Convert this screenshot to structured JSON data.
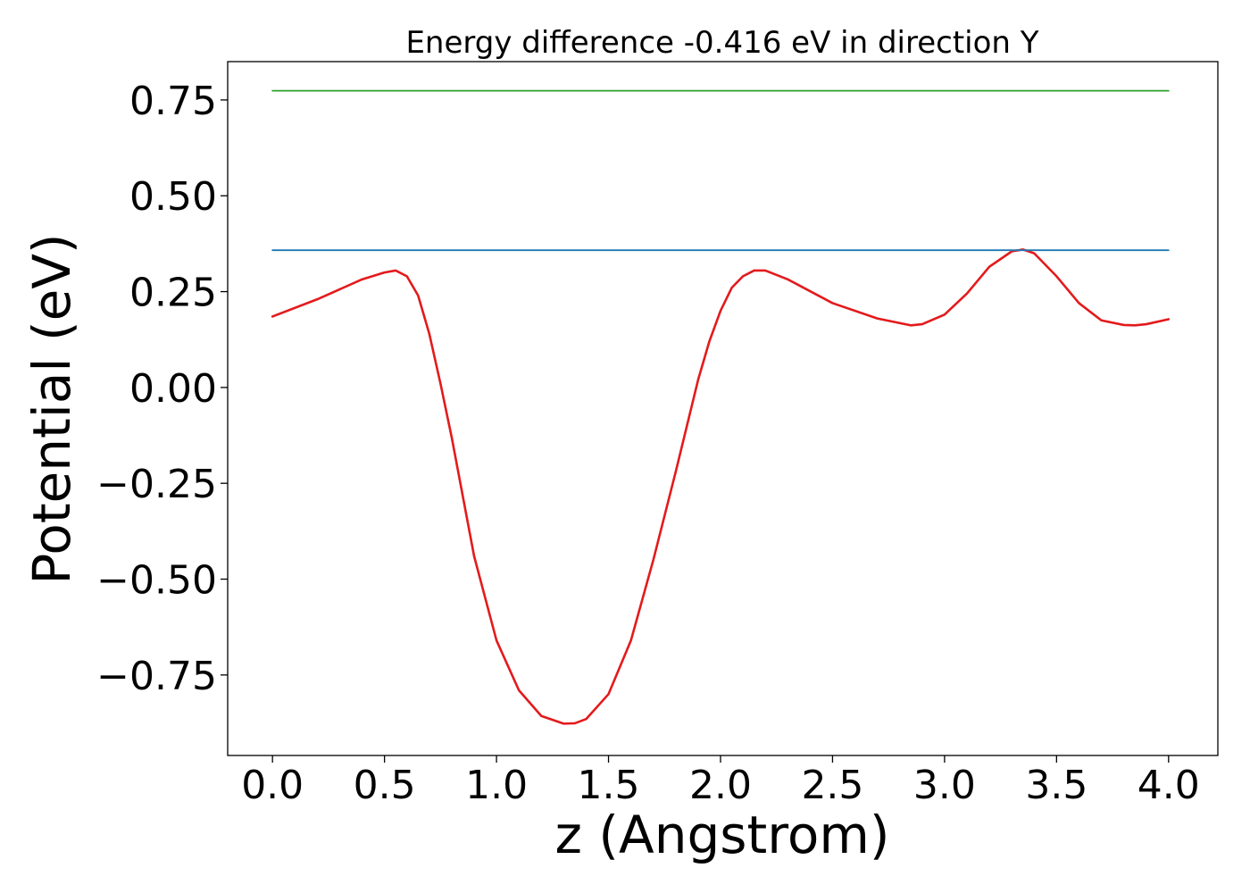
{
  "chart_data": {
    "type": "line",
    "title": "Energy difference -0.416 eV in direction Y",
    "xlabel": "z (Angstrom)",
    "ylabel": "Potential (eV)",
    "xlim": [
      -0.2,
      4.22
    ],
    "ylim": [
      -0.96,
      0.85
    ],
    "grid": false,
    "legend": "none",
    "x_ticks": [
      0.0,
      0.5,
      1.0,
      1.5,
      2.0,
      2.5,
      3.0,
      3.5,
      4.0
    ],
    "x_tick_labels": [
      "0.0",
      "0.5",
      "1.0",
      "1.5",
      "2.0",
      "2.5",
      "3.0",
      "3.5",
      "4.0"
    ],
    "y_ticks": [
      0.75,
      0.5,
      0.25,
      0.0,
      -0.25,
      -0.5,
      -0.75
    ],
    "y_tick_labels": [
      "0.75",
      "0.50",
      "0.25",
      "0.00",
      "−0.25",
      "−0.50",
      "−0.75"
    ],
    "series": [
      {
        "name": "potential",
        "color": "#e31a1c",
        "x": [
          0.0,
          0.2,
          0.4,
          0.5,
          0.55,
          0.6,
          0.65,
          0.7,
          0.75,
          0.8,
          0.9,
          1.0,
          1.1,
          1.2,
          1.3,
          1.35,
          1.4,
          1.5,
          1.6,
          1.7,
          1.8,
          1.9,
          1.95,
          2.0,
          2.05,
          2.1,
          2.15,
          2.2,
          2.3,
          2.5,
          2.7,
          2.85,
          2.9,
          3.0,
          3.1,
          3.2,
          3.3,
          3.35,
          3.4,
          3.5,
          3.6,
          3.7,
          3.8,
          3.85,
          3.9,
          4.0
        ],
        "y": [
          0.185,
          0.23,
          0.282,
          0.3,
          0.305,
          0.29,
          0.24,
          0.14,
          0.01,
          -0.13,
          -0.44,
          -0.66,
          -0.79,
          -0.857,
          -0.877,
          -0.876,
          -0.865,
          -0.8,
          -0.66,
          -0.45,
          -0.22,
          0.02,
          0.12,
          0.2,
          0.26,
          0.29,
          0.305,
          0.305,
          0.282,
          0.22,
          0.18,
          0.162,
          0.165,
          0.19,
          0.245,
          0.315,
          0.355,
          0.36,
          0.35,
          0.29,
          0.22,
          0.175,
          0.163,
          0.162,
          0.165,
          0.178
        ]
      },
      {
        "name": "barrier-level",
        "color": "#1f77b4",
        "x": [
          0.0,
          4.0
        ],
        "y": [
          0.358,
          0.358
        ]
      },
      {
        "name": "upper-level",
        "color": "#2ca02c",
        "x": [
          0.0,
          4.0
        ],
        "y": [
          0.774,
          0.774
        ]
      }
    ]
  }
}
